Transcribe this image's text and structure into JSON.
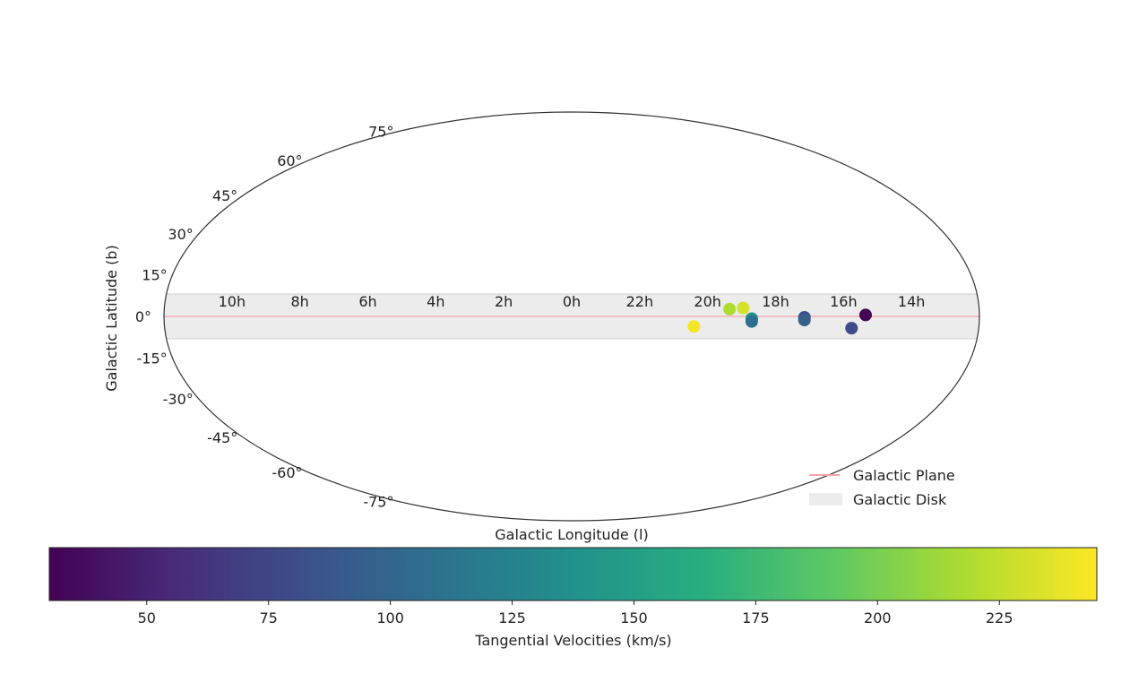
{
  "chart_data": {
    "type": "scatter",
    "projection": "mollweide",
    "xlabel": "Galactic Longitude (l)",
    "ylabel": "Galactic Latitude (b)",
    "x_tick_labels": [
      "14h",
      "16h",
      "18h",
      "20h",
      "22h",
      "0h",
      "2h",
      "4h",
      "6h",
      "8h",
      "10h"
    ],
    "y_ticks": [
      {
        "value": 75,
        "label": "75°"
      },
      {
        "value": 60,
        "label": "60°"
      },
      {
        "value": 45,
        "label": "45°"
      },
      {
        "value": 30,
        "label": "30°"
      },
      {
        "value": 15,
        "label": "15°"
      },
      {
        "value": 0,
        "label": "0°"
      },
      {
        "value": -15,
        "label": "-15°"
      },
      {
        "value": -30,
        "label": "-30°"
      },
      {
        "value": -45,
        "label": "-45°"
      },
      {
        "value": -60,
        "label": "-60°"
      },
      {
        "value": -75,
        "label": "-75°"
      }
    ],
    "disk_band_deg": [
      -8,
      8
    ],
    "plane_color": "#f4a3a3",
    "disk_color": "#ececec",
    "points": [
      {
        "ra_h": 15.35,
        "b": 0.5,
        "v": 31
      },
      {
        "ra_h": 15.75,
        "b": -4.2,
        "v": 80
      },
      {
        "ra_h": 17.15,
        "b": -0.3,
        "v": 82
      },
      {
        "ra_h": 17.15,
        "b": -1.3,
        "v": 95
      },
      {
        "ra_h": 18.7,
        "b": -0.8,
        "v": 140
      },
      {
        "ra_h": 18.7,
        "b": -1.8,
        "v": 108
      },
      {
        "ra_h": 18.95,
        "b": 3.0,
        "v": 232
      },
      {
        "ra_h": 19.35,
        "b": 2.6,
        "v": 218
      },
      {
        "ra_h": 20.4,
        "b": -3.6,
        "v": 242
      }
    ],
    "legend": [
      {
        "label": "Galactic Plane",
        "kind": "line"
      },
      {
        "label": "Galactic Disk",
        "kind": "patch"
      }
    ],
    "colorbar": {
      "label": "Tangential Velocities (km/s)",
      "colormap": "viridis",
      "range": [
        30,
        245
      ],
      "ticks": [
        50,
        75,
        100,
        125,
        150,
        175,
        200,
        225
      ]
    }
  }
}
